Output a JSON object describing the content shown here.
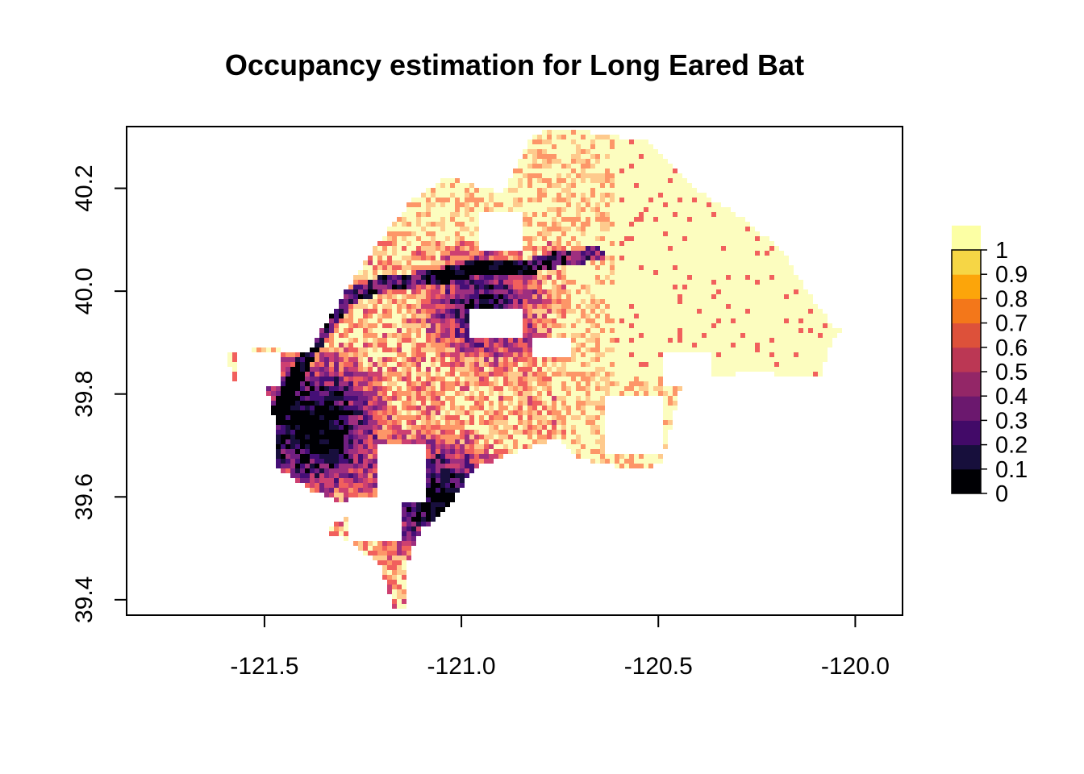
{
  "chart_data": {
    "type": "heatmap",
    "title": "Occupancy estimation for Long Eared Bat",
    "xlabel": "",
    "ylabel": "",
    "xlim": [
      -121.85,
      -119.88
    ],
    "ylim": [
      39.37,
      40.32
    ],
    "x_ticks": [
      "-121.5",
      "-121.0",
      "-120.5",
      "-120.0"
    ],
    "x_tick_values": [
      -121.5,
      -121.0,
      -120.5,
      -120.0
    ],
    "y_ticks": [
      "39.4",
      "39.6",
      "39.8",
      "40.0",
      "40.2"
    ],
    "y_tick_values": [
      39.4,
      39.6,
      39.8,
      40.0,
      40.2
    ],
    "legend": {
      "placement": "right",
      "labels": [
        "0",
        "0.1",
        "0.2",
        "0.3",
        "0.4",
        "0.5",
        "0.6",
        "0.7",
        "0.8",
        "0.9",
        "1"
      ],
      "breaks": [
        0,
        0.1,
        0.2,
        0.3,
        0.4,
        0.5,
        0.6,
        0.7,
        0.8,
        0.9,
        1
      ],
      "colors": [
        "#000004",
        "#170f3c",
        "#420a68",
        "#6b186e",
        "#932667",
        "#bb3754",
        "#dd513a",
        "#f3771a",
        "#fca50a",
        "#f6d645",
        "#fcffa4"
      ]
    },
    "raster_colors": [
      "#000004",
      "#180f3d",
      "#440f76",
      "#721f81",
      "#9e2f7f",
      "#cd4071",
      "#f1605d",
      "#fd9668",
      "#feca8d",
      "#fcfdbf"
    ],
    "grid": false
  }
}
